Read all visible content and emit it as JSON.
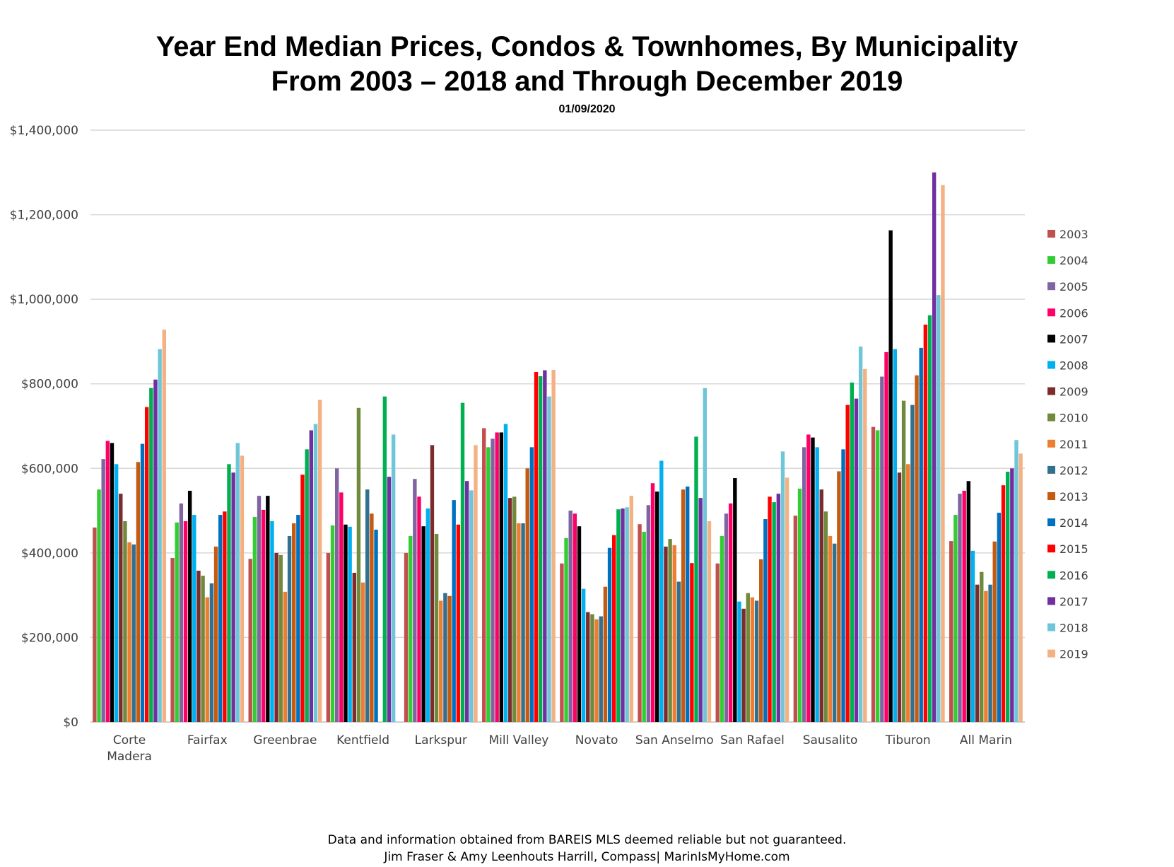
{
  "chart_data": {
    "type": "bar",
    "title_line1": "Year End Median Prices, Condos & Townhomes, By Municipality",
    "title_line2": "From 2003 – 2018 and Through December 2019",
    "subtitle": "01/09/2020",
    "footer_line1": "Data and information obtained from BAREIS MLS deemed reliable but not guaranteed.",
    "footer_line2": "Jim Fraser & Amy Leenhouts Harrill, Compass| MarinIsMyHome.com",
    "ylim": [
      0,
      1400000
    ],
    "yticks": [
      0,
      200000,
      400000,
      600000,
      800000,
      1000000,
      1200000,
      1400000
    ],
    "ytick_labels": [
      "$0",
      "$200,000",
      "$400,000",
      "$600,000",
      "$800,000",
      "$1,000,000",
      "$1,200,000",
      "$1,400,000"
    ],
    "grid": true,
    "legend_position": "right",
    "categories": [
      [
        "Corte",
        "Madera"
      ],
      [
        "Fairfax"
      ],
      [
        "Greenbrae"
      ],
      [
        "Kentfield"
      ],
      [
        "Larkspur"
      ],
      [
        "Mill Valley"
      ],
      [
        "Novato"
      ],
      [
        "San Anselmo"
      ],
      [
        "San Rafael"
      ],
      [
        "Sausalito"
      ],
      [
        "Tiburon"
      ],
      [
        "All Marin"
      ]
    ],
    "series": [
      {
        "name": "2003",
        "color": "#c0504d",
        "values": [
          460000,
          388000,
          386000,
          400000,
          400000,
          695000,
          375000,
          468000,
          375000,
          488000,
          698000,
          428000
        ]
      },
      {
        "name": "2004",
        "color": "#33cc33",
        "values": [
          550000,
          472000,
          485000,
          465000,
          440000,
          650000,
          435000,
          450000,
          440000,
          552000,
          690000,
          490000
        ]
      },
      {
        "name": "2005",
        "color": "#8064a2",
        "values": [
          622000,
          517000,
          535000,
          600000,
          575000,
          670000,
          500000,
          513000,
          493000,
          650000,
          817000,
          540000
        ]
      },
      {
        "name": "2006",
        "color": "#ff0066",
        "values": [
          665000,
          475000,
          502000,
          543000,
          533000,
          685000,
          493000,
          565000,
          517000,
          680000,
          875000,
          547000
        ]
      },
      {
        "name": "2007",
        "color": "#000000",
        "values": [
          660000,
          547000,
          535000,
          467000,
          463000,
          685000,
          463000,
          545000,
          577000,
          673000,
          1163000,
          570000
        ]
      },
      {
        "name": "2008",
        "color": "#00b0f0",
        "values": [
          610000,
          490000,
          475000,
          462000,
          505000,
          705000,
          315000,
          618000,
          285000,
          650000,
          882000,
          405000
        ]
      },
      {
        "name": "2009",
        "color": "#7b2c2c",
        "values": [
          540000,
          358000,
          400000,
          353000,
          655000,
          530000,
          260000,
          415000,
          268000,
          550000,
          590000,
          325000
        ]
      },
      {
        "name": "2010",
        "color": "#6f8a3c",
        "values": [
          475000,
          346000,
          395000,
          743000,
          445000,
          533000,
          255000,
          433000,
          305000,
          498000,
          760000,
          355000
        ]
      },
      {
        "name": "2011",
        "color": "#ed7d31",
        "values": [
          425000,
          295000,
          308000,
          330000,
          287000,
          470000,
          243000,
          418000,
          295000,
          440000,
          610000,
          310000
        ]
      },
      {
        "name": "2012",
        "color": "#31708f",
        "values": [
          420000,
          328000,
          440000,
          550000,
          305000,
          470000,
          250000,
          332000,
          287000,
          422000,
          750000,
          325000
        ]
      },
      {
        "name": "2013",
        "color": "#c55a11",
        "values": [
          615000,
          415000,
          470000,
          493000,
          298000,
          600000,
          320000,
          550000,
          385000,
          593000,
          820000,
          427000
        ]
      },
      {
        "name": "2014",
        "color": "#0070c0",
        "values": [
          658000,
          490000,
          490000,
          455000,
          525000,
          650000,
          412000,
          557000,
          480000,
          645000,
          885000,
          495000
        ]
      },
      {
        "name": "2015",
        "color": "#ff0000",
        "values": [
          745000,
          498000,
          585000,
          0,
          467000,
          828000,
          442000,
          376000,
          533000,
          750000,
          940000,
          560000
        ]
      },
      {
        "name": "2016",
        "color": "#00b050",
        "values": [
          790000,
          610000,
          645000,
          770000,
          755000,
          818000,
          503000,
          675000,
          520000,
          803000,
          962000,
          592000
        ]
      },
      {
        "name": "2017",
        "color": "#7030a0",
        "values": [
          810000,
          590000,
          690000,
          580000,
          570000,
          832000,
          505000,
          530000,
          540000,
          765000,
          1300000,
          600000
        ]
      },
      {
        "name": "2018",
        "color": "#6ec6d8",
        "values": [
          882000,
          660000,
          705000,
          680000,
          548000,
          770000,
          508000,
          790000,
          640000,
          888000,
          1010000,
          667000
        ]
      },
      {
        "name": "2019",
        "color": "#f4b183",
        "values": [
          928000,
          630000,
          762000,
          0,
          655000,
          833000,
          535000,
          475000,
          578000,
          835000,
          1270000,
          635000
        ]
      }
    ]
  }
}
